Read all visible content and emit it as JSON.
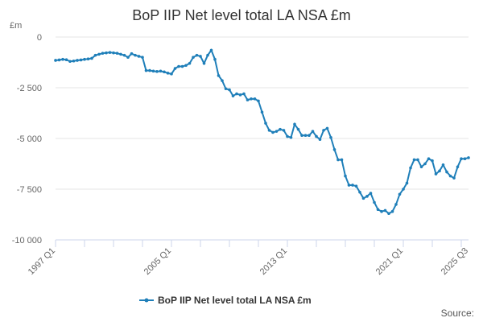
{
  "chart_data": {
    "type": "line",
    "title": "BoP IIP Net level total LA NSA £m",
    "unit_label": "£m",
    "ylim": [
      -10000,
      0
    ],
    "y_ticks": [
      0,
      -2500,
      -5000,
      -7500,
      -10000
    ],
    "y_tick_labels": [
      "0",
      "-2 500",
      "-5 000",
      "-7 500",
      "-10 000"
    ],
    "x_start_index": 0,
    "x_end_index": 114,
    "x_tick_labels": [
      {
        "label": "1997 Q1",
        "index": 0
      },
      {
        "label": "2005 Q1",
        "index": 32
      },
      {
        "label": "2013 Q1",
        "index": 64
      },
      {
        "label": "2021 Q1",
        "index": 96
      },
      {
        "label": "2025 Q3",
        "index": 114
      }
    ],
    "x_minor_tick_indices": [
      0,
      8,
      16,
      24,
      32,
      40,
      48,
      56,
      64,
      72,
      80,
      88,
      96,
      104,
      112
    ],
    "legend": "top-center below plot",
    "source_label": "Source:",
    "series": [
      {
        "name": "BoP IIP Net level total LA NSA £m",
        "color": "#1f7fb9",
        "start_year": 1997,
        "start_quarter": 1,
        "values": [
          -1150,
          -1130,
          -1100,
          -1120,
          -1200,
          -1180,
          -1150,
          -1130,
          -1100,
          -1080,
          -1050,
          -900,
          -850,
          -800,
          -780,
          -760,
          -780,
          -800,
          -850,
          -900,
          -1000,
          -820,
          -900,
          -950,
          -1000,
          -1650,
          -1650,
          -1680,
          -1700,
          -1680,
          -1720,
          -1780,
          -1820,
          -1550,
          -1450,
          -1450,
          -1400,
          -1300,
          -1000,
          -900,
          -950,
          -1300,
          -900,
          -650,
          -1100,
          -1900,
          -2150,
          -2550,
          -2600,
          -2900,
          -2800,
          -2850,
          -2800,
          -3100,
          -3050,
          -3050,
          -3150,
          -3700,
          -4250,
          -4600,
          -4700,
          -4650,
          -4550,
          -4600,
          -4900,
          -4950,
          -4300,
          -4550,
          -4850,
          -4850,
          -4850,
          -4650,
          -4900,
          -5050,
          -4600,
          -4500,
          -4950,
          -5550,
          -6050,
          -6050,
          -6850,
          -7300,
          -7300,
          -7350,
          -7650,
          -7950,
          -7850,
          -7700,
          -8150,
          -8500,
          -8600,
          -8550,
          -8700,
          -8600,
          -8250,
          -7750,
          -7500,
          -7200,
          -6450,
          -6050,
          -6050,
          -6400,
          -6250,
          -6000,
          -6100,
          -6750,
          -6600,
          -6300,
          -6650,
          -6850,
          -6950,
          -6400,
          -6000,
          -6000,
          -5950
        ]
      }
    ]
  }
}
